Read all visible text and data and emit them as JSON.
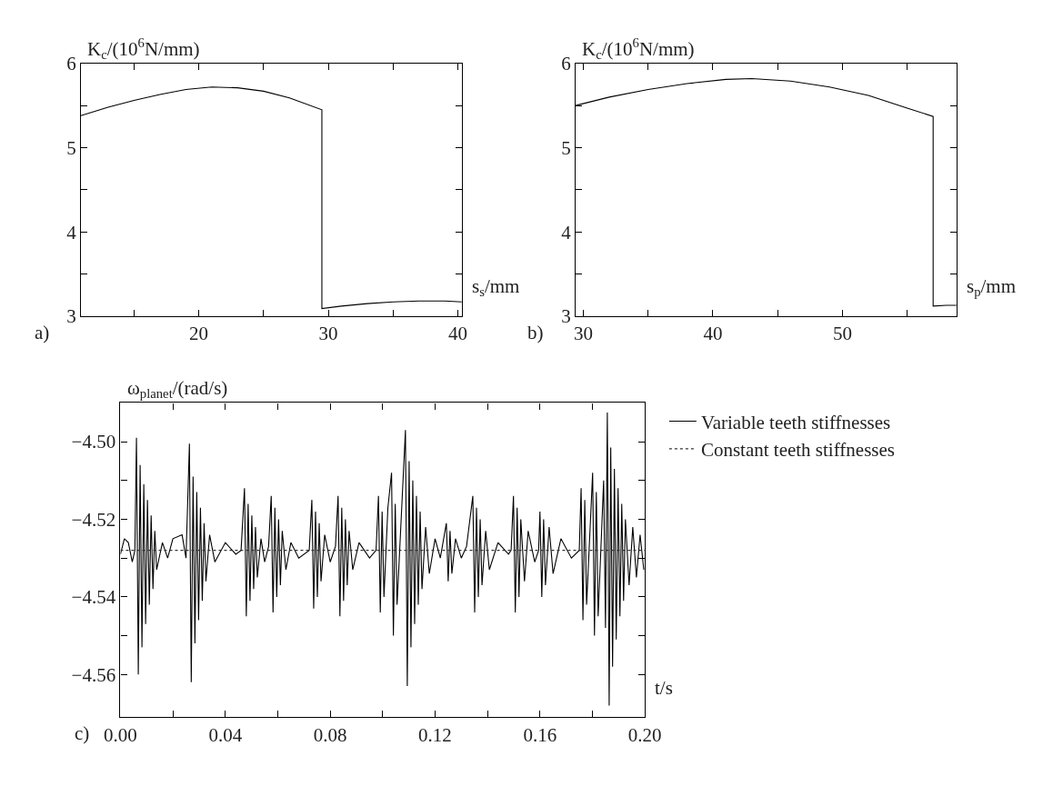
{
  "chart_data": [
    {
      "type": "line",
      "ylabel": "K$_{c}$/(10$^{6}$N/mm)",
      "xlabel": "s$_{s}$/mm",
      "annotations": [
        "a)"
      ],
      "legend": false,
      "marker": "none",
      "line_style": "solid",
      "xlim": [
        10.9,
        40.3
      ],
      "ylim": [
        3,
        6
      ],
      "xticks": [
        {
          "value": 15,
          "label": null
        },
        20,
        {
          "value": 25,
          "label": null
        },
        30,
        {
          "value": 35,
          "label": null
        },
        40
      ],
      "yticks": [
        3,
        {
          "value": 3.5,
          "label": null
        },
        4,
        {
          "value": 4.5,
          "label": null
        },
        5,
        {
          "value": 5.5,
          "label": null
        },
        6
      ],
      "series": [
        {
          "color": "#000000",
          "x": [
            10.9,
            13,
            15,
            17,
            19,
            21,
            23,
            25,
            27,
            29.5,
            29.5,
            31,
            33,
            35,
            37,
            39,
            40.3
          ],
          "values": [
            5.38,
            5.48,
            5.56,
            5.63,
            5.69,
            5.72,
            5.71,
            5.67,
            5.59,
            5.45,
            3.09,
            3.12,
            3.15,
            3.17,
            3.18,
            3.18,
            3.17
          ]
        }
      ]
    },
    {
      "type": "line",
      "ylabel": "K$_{c}$/(10$^{6}$N/mm)",
      "xlabel": "s$_{p}$/mm",
      "annotations": [
        "b)"
      ],
      "legend": false,
      "marker": "none",
      "line_style": "solid",
      "xlim": [
        29.4,
        58.8
      ],
      "ylim": [
        3,
        6
      ],
      "xticks": [
        30,
        {
          "value": 35,
          "label": null
        },
        40,
        {
          "value": 45,
          "label": null
        },
        50,
        {
          "value": 55,
          "label": null
        }
      ],
      "yticks": [
        3,
        {
          "value": 3.5,
          "label": null
        },
        4,
        {
          "value": 4.5,
          "label": null
        },
        5,
        {
          "value": 5.5,
          "label": null
        },
        6
      ],
      "series": [
        {
          "color": "#000000",
          "x": [
            29.4,
            32,
            35,
            38,
            41,
            43,
            46,
            49,
            52,
            55,
            57,
            57,
            58,
            58.8
          ],
          "values": [
            5.5,
            5.6,
            5.69,
            5.76,
            5.81,
            5.82,
            5.79,
            5.72,
            5.62,
            5.47,
            5.37,
            3.12,
            3.13,
            3.13
          ]
        }
      ]
    },
    {
      "type": "line",
      "ylabel": "ω$_{planet}$/(rad/s)",
      "xlabel": "t/s",
      "annotations": [
        "c)"
      ],
      "legend": "right",
      "marker": "none",
      "xlim": [
        0,
        0.2
      ],
      "ylim": [
        -4.571,
        -4.49
      ],
      "xticks": [
        {
          "value": 0,
          "label": "0.00"
        },
        {
          "value": 0.02,
          "label": null
        },
        {
          "value": 0.04,
          "label": "0.04"
        },
        {
          "value": 0.06,
          "label": null
        },
        {
          "value": 0.08,
          "label": "0.08"
        },
        {
          "value": 0.1,
          "label": null
        },
        {
          "value": 0.12,
          "label": "0.12"
        },
        {
          "value": 0.14,
          "label": null
        },
        {
          "value": 0.16,
          "label": "0.16"
        },
        {
          "value": 0.18,
          "label": null
        },
        {
          "value": 0.2,
          "label": "0.20"
        }
      ],
      "yticks": [
        {
          "value": -4.5,
          "label": "−4.50"
        },
        {
          "value": -4.51,
          "label": null
        },
        {
          "value": -4.52,
          "label": "−4.52"
        },
        {
          "value": -4.53,
          "label": null
        },
        {
          "value": -4.54,
          "label": "−4.54"
        },
        {
          "value": -4.55,
          "label": null
        },
        {
          "value": -4.56,
          "label": "−4.56"
        }
      ],
      "series": [
        {
          "name": "Variable teeth stiffnesses",
          "color": "#000000",
          "line_style": "solid",
          "x": [
            0.0,
            0.0015,
            0.003,
            0.0045,
            0.0055,
            0.0061,
            0.0068,
            0.0075,
            0.0082,
            0.0089,
            0.0096,
            0.0103,
            0.011,
            0.0117,
            0.0124,
            0.0131,
            0.0138,
            0.016,
            0.018,
            0.02,
            0.0235,
            0.025,
            0.0263,
            0.027,
            0.0277,
            0.0284,
            0.0291,
            0.0298,
            0.0305,
            0.0312,
            0.0319,
            0.0326,
            0.034,
            0.036,
            0.04,
            0.044,
            0.046,
            0.0473,
            0.048,
            0.0487,
            0.0494,
            0.0501,
            0.0508,
            0.0515,
            0.0522,
            0.0536,
            0.055,
            0.0565,
            0.0575,
            0.0582,
            0.0589,
            0.0596,
            0.0603,
            0.061,
            0.0617,
            0.0631,
            0.065,
            0.068,
            0.072,
            0.073,
            0.0737,
            0.0744,
            0.0751,
            0.0758,
            0.0765,
            0.0779,
            0.08,
            0.082,
            0.083,
            0.0837,
            0.0844,
            0.0851,
            0.0858,
            0.0865,
            0.0872,
            0.0886,
            0.091,
            0.095,
            0.0975,
            0.0984,
            0.0991,
            0.0998,
            0.1005,
            0.102,
            0.1034,
            0.1041,
            0.1048,
            0.1055,
            0.1087,
            0.1094,
            0.1101,
            0.1108,
            0.1115,
            0.1122,
            0.1129,
            0.1136,
            0.1143,
            0.115,
            0.1164,
            0.1178,
            0.12,
            0.122,
            0.1243,
            0.125,
            0.1257,
            0.1264,
            0.1278,
            0.13,
            0.132,
            0.1344,
            0.1351,
            0.1358,
            0.1365,
            0.1372,
            0.1379,
            0.1393,
            0.1407,
            0.144,
            0.148,
            0.149,
            0.1499,
            0.1506,
            0.1513,
            0.152,
            0.1527,
            0.1541,
            0.1555,
            0.158,
            0.1595,
            0.16,
            0.1607,
            0.1614,
            0.1621,
            0.1635,
            0.165,
            0.168,
            0.172,
            0.175,
            0.1757,
            0.1764,
            0.1771,
            0.1778,
            0.1801,
            0.1808,
            0.1815,
            0.1822,
            0.1843,
            0.185,
            0.1857,
            0.1864,
            0.187,
            0.1877,
            0.1884,
            0.1891,
            0.1898,
            0.1905,
            0.1912,
            0.1919,
            0.1926,
            0.194,
            0.1954,
            0.1968,
            0.1982,
            0.1996
          ],
          "values": [
            -4.529,
            -4.525,
            -4.526,
            -4.531,
            -4.528,
            -4.499,
            -4.56,
            -4.506,
            -4.553,
            -4.511,
            -4.547,
            -4.515,
            -4.542,
            -4.519,
            -4.538,
            -4.523,
            -4.533,
            -4.526,
            -4.53,
            -4.525,
            -4.524,
            -4.53,
            -4.5005,
            -4.562,
            -4.509,
            -4.552,
            -4.513,
            -4.546,
            -4.517,
            -4.541,
            -4.521,
            -4.536,
            -4.524,
            -4.531,
            -4.526,
            -4.529,
            -4.528,
            -4.512,
            -4.545,
            -4.516,
            -4.541,
            -4.519,
            -4.538,
            -4.522,
            -4.535,
            -4.525,
            -4.531,
            -4.527,
            -4.514,
            -4.544,
            -4.517,
            -4.54,
            -4.52,
            -4.537,
            -4.523,
            -4.533,
            -4.526,
            -4.53,
            -4.528,
            -4.515,
            -4.543,
            -4.518,
            -4.54,
            -4.521,
            -4.536,
            -4.524,
            -4.531,
            -4.527,
            -4.514,
            -4.545,
            -4.517,
            -4.541,
            -4.52,
            -4.537,
            -4.523,
            -4.533,
            -4.526,
            -4.53,
            -4.528,
            -4.514,
            -4.544,
            -4.518,
            -4.54,
            -4.517,
            -4.508,
            -4.55,
            -4.516,
            -4.542,
            -4.497,
            -4.563,
            -4.505,
            -4.553,
            -4.51,
            -4.547,
            -4.514,
            -4.542,
            -4.518,
            -4.538,
            -4.522,
            -4.534,
            -4.525,
            -4.53,
            -4.521,
            -4.536,
            -4.523,
            -4.534,
            -4.525,
            -4.53,
            -4.527,
            -4.514,
            -4.544,
            -4.517,
            -4.54,
            -4.52,
            -4.537,
            -4.523,
            -4.533,
            -4.526,
            -4.529,
            -4.528,
            -4.514,
            -4.544,
            -4.517,
            -4.54,
            -4.52,
            -4.536,
            -4.523,
            -4.531,
            -4.528,
            -4.518,
            -4.54,
            -4.52,
            -4.537,
            -4.522,
            -4.534,
            -4.525,
            -4.53,
            -4.528,
            -4.512,
            -4.546,
            -4.515,
            -4.542,
            -4.508,
            -4.55,
            -4.513,
            -4.545,
            -4.51,
            -4.548,
            -4.4925,
            -4.568,
            -4.5015,
            -4.558,
            -4.507,
            -4.551,
            -4.512,
            -4.545,
            -4.516,
            -4.541,
            -4.52,
            -4.537,
            -4.522,
            -4.535,
            -4.524,
            -4.533
          ]
        },
        {
          "name": "Constant teeth stiffnesses",
          "color": "#333333",
          "line_style": "dotted",
          "x": [
            0,
            0.2
          ],
          "values": [
            -4.528,
            -4.528
          ]
        }
      ]
    }
  ]
}
